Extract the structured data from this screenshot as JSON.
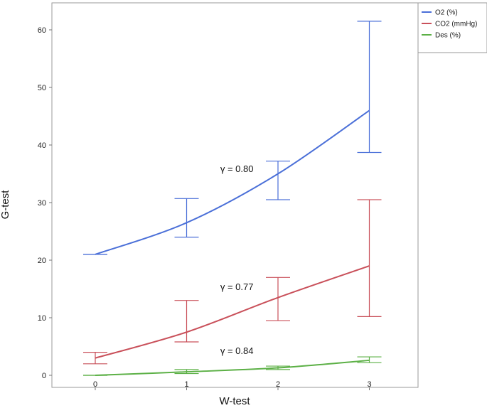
{
  "chart_data": {
    "type": "line",
    "xlabel": "W-test",
    "ylabel": "G-test",
    "x": [
      0,
      1,
      2,
      3
    ],
    "xticks": [
      "0",
      "1",
      "2",
      "3"
    ],
    "yticks": [
      "0",
      "10",
      "20",
      "30",
      "40",
      "50",
      "60"
    ],
    "ylim": [
      0,
      64
    ],
    "xlim": [
      -0.45,
      3.6
    ],
    "grid": false,
    "legend_position": "outside-right",
    "series": [
      {
        "name": "O2 (%)",
        "color": "#4a6fd8",
        "values": [
          21,
          26.5,
          35,
          46
        ],
        "error_low": [
          21,
          24,
          30.5,
          38.7
        ],
        "error_high": [
          21,
          30.7,
          37.2,
          61.5
        ]
      },
      {
        "name": "CO2 (mmHg)",
        "color": "#c9505a",
        "values": [
          3,
          7.5,
          13.5,
          19
        ],
        "error_low": [
          2,
          5.8,
          9.5,
          10.2
        ],
        "error_high": [
          4,
          13,
          17,
          30.5
        ]
      },
      {
        "name": "Des (%)",
        "color": "#5cb046",
        "values": [
          0,
          0.6,
          1.3,
          2.6
        ],
        "error_low": [
          0,
          0.3,
          1,
          2.2
        ],
        "error_high": [
          0,
          1,
          1.6,
          3.2
        ]
      }
    ],
    "annotations": [
      {
        "text": "γ = 0.80",
        "x": 1.55,
        "y": 35.3
      },
      {
        "text": "γ = 0.77",
        "x": 1.55,
        "y": 14.8
      },
      {
        "text": "γ = 0.84",
        "x": 1.55,
        "y": 3.7
      }
    ]
  }
}
